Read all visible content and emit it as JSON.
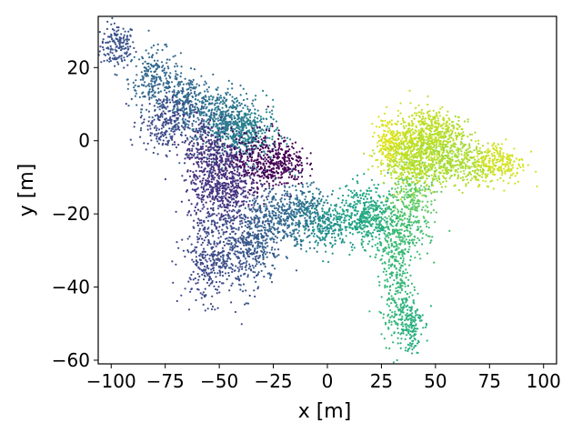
{
  "chart_data": {
    "type": "scatter",
    "title": "",
    "xlabel": "x [m]",
    "ylabel": "y [m]",
    "xlim": [
      -106,
      106
    ],
    "ylim": [
      -61,
      34
    ],
    "x_ticks": [
      -100,
      -75,
      -50,
      -25,
      0,
      25,
      50,
      75,
      100
    ],
    "x_tick_labels": [
      "−100",
      "−75",
      "−50",
      "−25",
      "0",
      "25",
      "50",
      "75",
      "100"
    ],
    "y_ticks": [
      -60,
      -40,
      -20,
      0,
      20
    ],
    "y_tick_labels": [
      "−60",
      "−40",
      "−20",
      "0",
      "20"
    ],
    "grid": false,
    "legend": "none",
    "colormap": "viridis",
    "clusters": [
      {
        "x": -97,
        "y": 26,
        "color": "#3b528b",
        "spread": [
          4,
          3
        ]
      },
      {
        "x": -80,
        "y": 17,
        "color": "#31688e",
        "spread": [
          6,
          4
        ]
      },
      {
        "x": -65,
        "y": 10,
        "color": "#31688e",
        "spread": [
          6,
          4
        ]
      },
      {
        "x": -50,
        "y": 7,
        "color": "#2c728e",
        "spread": [
          7,
          4
        ]
      },
      {
        "x": -45,
        "y": 3,
        "color": "#2a788e",
        "spread": [
          7,
          4
        ]
      },
      {
        "x": -35,
        "y": 2,
        "color": "#26828e",
        "spread": [
          6,
          4
        ]
      },
      {
        "x": -75,
        "y": 5,
        "color": "#3e4989",
        "spread": [
          6,
          4
        ]
      },
      {
        "x": -55,
        "y": -3,
        "color": "#46327e",
        "spread": [
          6,
          5
        ]
      },
      {
        "x": -45,
        "y": -10,
        "color": "#482878",
        "spread": [
          8,
          5
        ]
      },
      {
        "x": -30,
        "y": -5,
        "color": "#440154",
        "spread": [
          7,
          4
        ]
      },
      {
        "x": -20,
        "y": -6,
        "color": "#440154",
        "spread": [
          5,
          3
        ]
      },
      {
        "x": -50,
        "y": -15,
        "color": "#443983",
        "spread": [
          7,
          5
        ]
      },
      {
        "x": -55,
        "y": -32,
        "color": "#3e4989",
        "spread": [
          6,
          6
        ]
      },
      {
        "x": -40,
        "y": -30,
        "color": "#3b528b",
        "spread": [
          6,
          6
        ]
      },
      {
        "x": -30,
        "y": -25,
        "color": "#355f8d",
        "spread": [
          5,
          5
        ]
      },
      {
        "x": -20,
        "y": -20,
        "color": "#31688e",
        "spread": [
          5,
          4
        ]
      },
      {
        "x": -10,
        "y": -20,
        "color": "#2c728e",
        "spread": [
          5,
          4
        ]
      },
      {
        "x": 0,
        "y": -23,
        "color": "#21918c",
        "spread": [
          6,
          3
        ]
      },
      {
        "x": 15,
        "y": -20,
        "color": "#1fa187",
        "spread": [
          6,
          4
        ]
      },
      {
        "x": 22,
        "y": -22,
        "color": "#28ae80",
        "spread": [
          5,
          4
        ]
      },
      {
        "x": 35,
        "y": -25,
        "color": "#3fbc73",
        "spread": [
          6,
          4
        ]
      },
      {
        "x": 32,
        "y": -40,
        "color": "#35b779",
        "spread": [
          4,
          7
        ]
      },
      {
        "x": 38,
        "y": -50,
        "color": "#29af7f",
        "spread": [
          3,
          4
        ]
      },
      {
        "x": 40,
        "y": -15,
        "color": "#5ec962",
        "spread": [
          5,
          4
        ]
      },
      {
        "x": 35,
        "y": -5,
        "color": "#b5de2b",
        "spread": [
          6,
          4
        ]
      },
      {
        "x": 40,
        "y": 0,
        "color": "#c8e020",
        "spread": [
          6,
          4
        ]
      },
      {
        "x": 45,
        "y": -5,
        "color": "#b5de2b",
        "spread": [
          6,
          4
        ]
      },
      {
        "x": 55,
        "y": -3,
        "color": "#a0da39",
        "spread": [
          7,
          4
        ]
      },
      {
        "x": 65,
        "y": -7,
        "color": "#addc30",
        "spread": [
          7,
          3
        ]
      },
      {
        "x": 80,
        "y": -6,
        "color": "#d2e21b",
        "spread": [
          6,
          3
        ]
      },
      {
        "x": 28,
        "y": 0,
        "color": "#dde318",
        "spread": [
          3,
          3
        ]
      },
      {
        "x": 50,
        "y": 3,
        "color": "#bddf26",
        "spread": [
          6,
          3
        ]
      }
    ]
  }
}
